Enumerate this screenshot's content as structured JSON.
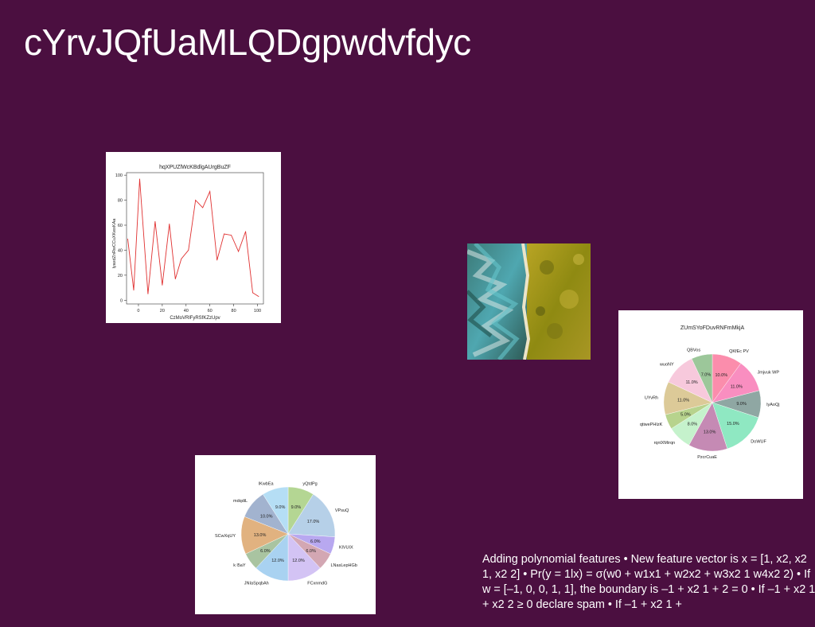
{
  "slide": {
    "title": "cYrvJQfUaMLQDgpwdvfdyc",
    "body_text": "Adding polynomial features • New feature vector is x = [1, x2, x2 1, x2 2] • Pr(y = 1lx) = σ(w0 + w1x1 + w2x2 + w3x2 1 w4x2 2) • If w = [–1, 0, 0, 1, 1], the boundary is –1 + x2 1 + 2 = 0 • If –1 + x2 1 + x2 2 ≥ 0 declare spam • If –1 + x2 1 +"
  },
  "chart_data": [
    {
      "type": "line",
      "title": "hqXPUZlWcKBdlgAUrgBuZF",
      "xlabel": "CzMoVRlFyRSfKZzUpv",
      "ylabel": "lyaxdZnRwCCuXKwxKAa",
      "xlim": [
        -10,
        105
      ],
      "ylim": [
        -3,
        102
      ],
      "xticks": [
        0,
        20,
        40,
        60,
        80,
        100
      ],
      "yticks": [
        0,
        20,
        40,
        60,
        80,
        100
      ],
      "color": "#e03030",
      "x": [
        -9,
        -4,
        1,
        8,
        14,
        20,
        26,
        31,
        36,
        42,
        48,
        54,
        60,
        66,
        72,
        78,
        84,
        90,
        96,
        101
      ],
      "y": [
        49,
        8,
        97,
        5,
        63,
        12,
        61,
        17,
        33,
        40,
        80,
        74,
        87,
        32,
        53,
        52,
        39,
        55,
        6,
        3
      ]
    },
    {
      "type": "pie",
      "title": "ZUmSYoFDuvRNFmMkjA",
      "labels": [
        "QKfEc PV",
        "Jmjvuk WP",
        "lyAoQj",
        "DoWUF",
        "PzcrCuaE",
        "rqnlXMirqn",
        "qtiwePHIzK",
        "UYvRh",
        "wuoNY",
        "QBVos"
      ],
      "values": [
        10.0,
        11.0,
        9.0,
        15.0,
        13.0,
        8.0,
        5.0,
        11.0,
        11.0,
        7.0
      ],
      "pct_labels": [
        "10.0%",
        "11.0%",
        "9.0%",
        "15.0%",
        "13.0%",
        "8.0%",
        "5.0%",
        "11.0%",
        "11.0%",
        "7.0%"
      ],
      "colors": [
        "#fb8dac",
        "#f98ec0",
        "#8fa7a3",
        "#8fe8c2",
        "#c58ab4",
        "#c5f2cc",
        "#b7d38d",
        "#dcca98",
        "#f7c9dc",
        "#9cc79a"
      ]
    },
    {
      "type": "pie",
      "labels": [
        "yQtdPg",
        "VPsuQ",
        "KlVUIX",
        "LNasLepHGb",
        "FCxnmdG",
        "JNIaSpqbAh",
        "k l5aY",
        "SCwXqUY",
        "mdqdiL",
        "lKwbEa"
      ],
      "values": [
        9.0,
        17.0,
        6.0,
        6.0,
        12.0,
        12.0,
        6.0,
        13.0,
        10.0,
        9.0
      ],
      "pct_labels": [
        "9.0%",
        "17.0%",
        "6.0%",
        "6.0%",
        "12.0%",
        "12.0%",
        "6.0%",
        "13.0%",
        "10.0%",
        "9.0%"
      ],
      "colors": [
        "#b4d693",
        "#b6d0e8",
        "#b8a8f0",
        "#d3a7b3",
        "#d3c3f4",
        "#a9d2f1",
        "#a9c4a1",
        "#e1b280",
        "#a2b3cf",
        "#b5def5"
      ]
    }
  ]
}
